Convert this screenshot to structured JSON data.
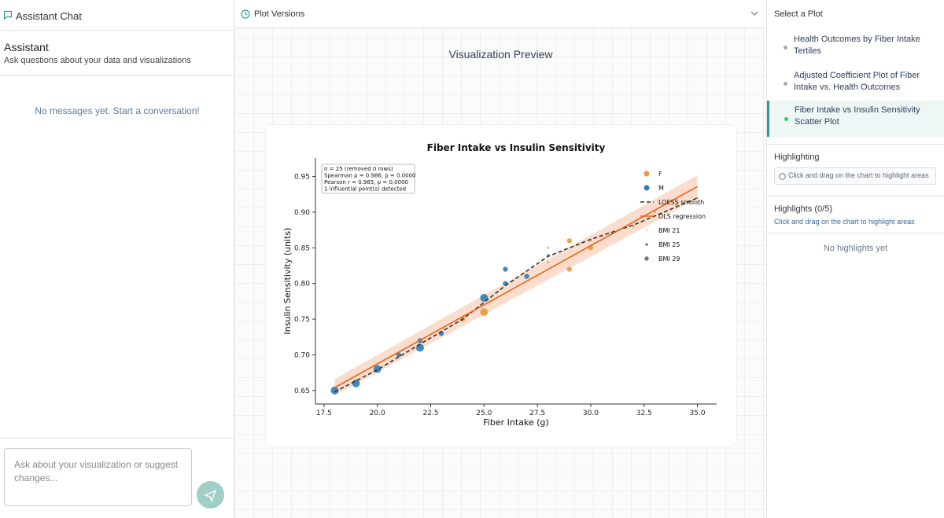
{
  "left_panel": {
    "header": "Assistant Chat",
    "title": "Assistant",
    "subtitle": "Ask questions about your data and visualizations",
    "empty_message": "No messages yet. Start a conversation!",
    "input_placeholder": "Ask about your visualization or suggest changes..."
  },
  "center_panel": {
    "header": "Plot Versions",
    "preview_title": "Visualization Preview"
  },
  "right_panel": {
    "title": "Select a Plot",
    "plots": [
      "Health Outcomes by Fiber Intake Tertiles",
      "Adjusted Coefficient Plot of Fiber Intake vs. Health Outcomes",
      "Fiber Intake vs Insulin Sensitivity Scatter Plot"
    ],
    "highlighting_title": "Highlighting",
    "highlighting_hint": "Click and drag on the chart to highlight areas",
    "highlights_title": "Highlights (0/5)",
    "highlights_hint": "Click and drag on the chart to highlight areas",
    "highlights_empty": "No highlights yet"
  },
  "chart_data": {
    "type": "scatter",
    "title": "Fiber Intake vs Insulin Sensitivity",
    "x_label": "Fiber Intake (g)",
    "y_label": "Insulin Sensitivity (units)",
    "xlim": [
      17.1,
      35.9
    ],
    "ylim": [
      0.631,
      0.976
    ],
    "xticks": [
      17.5,
      {
        "value": 20,
        "label": "20.0"
      },
      22.5,
      {
        "value": 25,
        "label": "25.0"
      },
      27.5,
      {
        "value": 30,
        "label": "30.0"
      },
      32.5,
      {
        "value": 35,
        "label": "35.0"
      }
    ],
    "yticks": [
      0.65,
      {
        "value": 0.7,
        "label": "0.70"
      },
      0.75,
      {
        "value": 0.8,
        "label": "0.80"
      },
      0.85,
      {
        "value": 0.9,
        "label": "0.90"
      },
      0.95
    ],
    "annotation": [
      "n = 25 (removed 0 rows)",
      "Spearman ρ = 0.986, p = 0.0000",
      "Pearson r = 0.985, p = 0.0000",
      "1 influential point(s) detected"
    ],
    "series": [
      {
        "name": "F",
        "color": "#e69a3c",
        "x": [
          24,
          25,
          28,
          28,
          29,
          29,
          30,
          30,
          31,
          32,
          33,
          34,
          35
        ],
        "values": [
          0.75,
          0.76,
          0.85,
          0.83,
          0.86,
          0.82,
          0.86,
          0.85,
          0.87,
          0.88,
          0.9,
          0.91,
          0.92
        ],
        "bmi": [
          25,
          29,
          21,
          21,
          25,
          25,
          21,
          25,
          21,
          21,
          21,
          21,
          21
        ]
      },
      {
        "name": "M",
        "color": "#2e7db8",
        "x": [
          18,
          19,
          20,
          21,
          22,
          22,
          23,
          25,
          26,
          26,
          27,
          28
        ],
        "values": [
          0.65,
          0.66,
          0.68,
          0.7,
          0.71,
          0.72,
          0.73,
          0.78,
          0.8,
          0.82,
          0.81,
          0.84
        ],
        "bmi": [
          29,
          29,
          29,
          25,
          29,
          25,
          25,
          29,
          25,
          25,
          25,
          21
        ]
      }
    ],
    "lines": [
      {
        "name": "LOESS smooth",
        "color": "#333333",
        "style": "dashed",
        "x": [
          18,
          20,
          22,
          24,
          26,
          28,
          30,
          32,
          35
        ],
        "values": [
          0.648,
          0.679,
          0.715,
          0.75,
          0.797,
          0.838,
          0.862,
          0.882,
          0.92
        ]
      },
      {
        "name": "OLS regression",
        "color": "#e8641b",
        "style": "solid",
        "x": [
          18,
          35
        ],
        "values": [
          0.654,
          0.936
        ],
        "band_lower": [
          0.643,
          0.919
        ],
        "band_upper": [
          0.666,
          0.952
        ]
      }
    ],
    "size_legend": [
      {
        "name": "BMI 21",
        "value": 21
      },
      {
        "name": "BMI 25",
        "value": 25
      },
      {
        "name": "BMI 29",
        "value": 29
      }
    ],
    "legend_position": "upper right"
  }
}
